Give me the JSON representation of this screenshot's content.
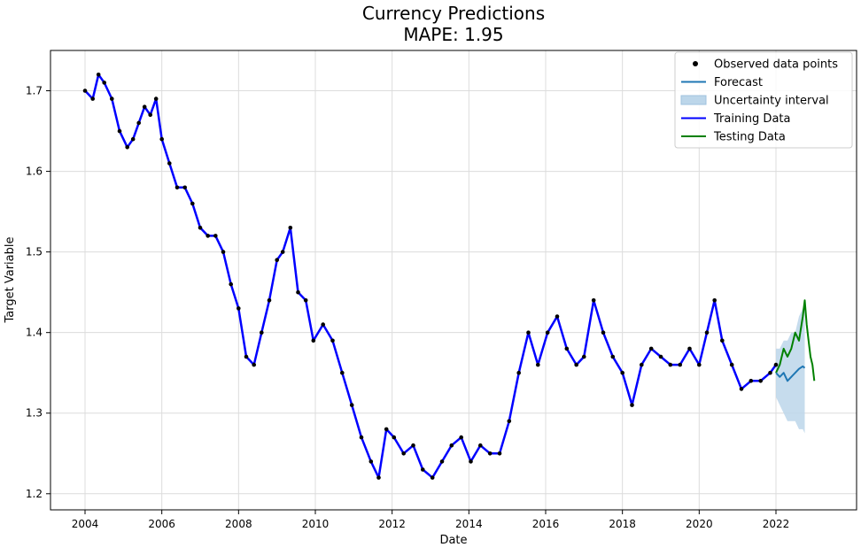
{
  "chart_data": {
    "type": "line",
    "title": "Currency Predictions",
    "subtitle": "MAPE: 1.95",
    "xlabel": "Date",
    "ylabel": "Target Variable",
    "xlim": [
      2003.1,
      2024.1
    ],
    "ylim": [
      1.18,
      1.75
    ],
    "x_ticks": [
      "2004",
      "2006",
      "2008",
      "2010",
      "2012",
      "2014",
      "2016",
      "2018",
      "2020",
      "2022"
    ],
    "y_ticks": [
      "1.2",
      "1.3",
      "1.4",
      "1.5",
      "1.6",
      "1.7"
    ],
    "grid": true,
    "legend_position": "top-right",
    "legend": [
      {
        "label": "Observed data points",
        "kind": "dot",
        "color": "#000000"
      },
      {
        "label": "Forecast",
        "kind": "line",
        "color": "#1f77b4"
      },
      {
        "label": "Uncertainty interval",
        "kind": "patch",
        "color": "#bcd6ea"
      },
      {
        "label": "Training Data",
        "kind": "line",
        "color": "#0000ff"
      },
      {
        "label": "Testing Data",
        "kind": "line",
        "color": "#008000"
      }
    ],
    "series": [
      {
        "name": "Training Data",
        "color": "#0000ff",
        "x": [
          2004.0,
          2004.2,
          2004.35,
          2004.5,
          2004.7,
          2004.9,
          2005.1,
          2005.25,
          2005.4,
          2005.55,
          2005.7,
          2005.85,
          2006.0,
          2006.2,
          2006.4,
          2006.6,
          2006.8,
          2007.0,
          2007.2,
          2007.4,
          2007.6,
          2007.8,
          2008.0,
          2008.2,
          2008.4,
          2008.6,
          2008.8,
          2009.0,
          2009.15,
          2009.35,
          2009.55,
          2009.75,
          2009.95,
          2010.2,
          2010.45,
          2010.7,
          2010.95,
          2011.2,
          2011.45,
          2011.65,
          2011.85,
          2012.05,
          2012.3,
          2012.55,
          2012.8,
          2013.05,
          2013.3,
          2013.55,
          2013.8,
          2014.05,
          2014.3,
          2014.55,
          2014.8,
          2015.05,
          2015.3,
          2015.55,
          2015.8,
          2016.05,
          2016.3,
          2016.55,
          2016.8,
          2017.0,
          2017.25,
          2017.5,
          2017.75,
          2018.0,
          2018.25,
          2018.5,
          2018.75,
          2019.0,
          2019.25,
          2019.5,
          2019.75,
          2020.0,
          2020.2,
          2020.4,
          2020.6,
          2020.85,
          2021.1,
          2021.35,
          2021.6,
          2021.85,
          2022.0
        ],
        "values": [
          1.7,
          1.69,
          1.72,
          1.71,
          1.69,
          1.65,
          1.63,
          1.64,
          1.66,
          1.68,
          1.67,
          1.69,
          1.64,
          1.61,
          1.58,
          1.58,
          1.56,
          1.53,
          1.52,
          1.52,
          1.5,
          1.46,
          1.43,
          1.37,
          1.36,
          1.4,
          1.44,
          1.49,
          1.5,
          1.53,
          1.45,
          1.44,
          1.39,
          1.41,
          1.39,
          1.35,
          1.31,
          1.27,
          1.24,
          1.22,
          1.28,
          1.27,
          1.25,
          1.26,
          1.23,
          1.22,
          1.24,
          1.26,
          1.27,
          1.24,
          1.26,
          1.25,
          1.25,
          1.29,
          1.35,
          1.4,
          1.36,
          1.4,
          1.42,
          1.38,
          1.36,
          1.37,
          1.44,
          1.4,
          1.37,
          1.35,
          1.31,
          1.36,
          1.38,
          1.37,
          1.36,
          1.36,
          1.38,
          1.36,
          1.4,
          1.44,
          1.39,
          1.36,
          1.33,
          1.34,
          1.34,
          1.35,
          1.36
        ]
      },
      {
        "name": "Testing Data",
        "color": "#008000",
        "x": [
          2022.0,
          2022.1,
          2022.2,
          2022.3,
          2022.4,
          2022.5,
          2022.6,
          2022.7,
          2022.75,
          2022.8,
          2022.85,
          2022.9,
          2022.95,
          2023.0
        ],
        "values": [
          1.35,
          1.36,
          1.38,
          1.37,
          1.38,
          1.4,
          1.39,
          1.42,
          1.44,
          1.41,
          1.39,
          1.37,
          1.36,
          1.34
        ]
      },
      {
        "name": "Forecast",
        "color": "#1f77b4",
        "x": [
          2022.0,
          2022.1,
          2022.2,
          2022.3,
          2022.4,
          2022.5,
          2022.6,
          2022.7,
          2022.75
        ],
        "values": [
          1.35,
          1.345,
          1.35,
          1.34,
          1.345,
          1.35,
          1.355,
          1.358,
          1.356
        ]
      },
      {
        "name": "Uncertainty interval",
        "color": "#bcd6ea",
        "x": [
          2022.0,
          2022.1,
          2022.2,
          2022.3,
          2022.4,
          2022.5,
          2022.6,
          2022.7,
          2022.75
        ],
        "lower": [
          1.32,
          1.31,
          1.3,
          1.29,
          1.29,
          1.29,
          1.28,
          1.28,
          1.275
        ],
        "upper": [
          1.38,
          1.38,
          1.39,
          1.39,
          1.4,
          1.4,
          1.42,
          1.43,
          1.44
        ]
      }
    ]
  }
}
